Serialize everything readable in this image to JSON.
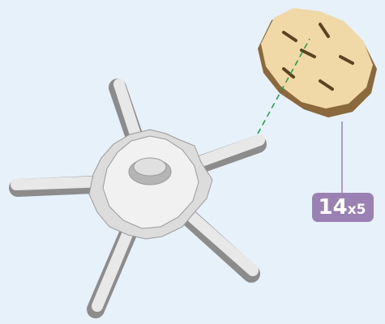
{
  "callout": {
    "count": "14",
    "multiplier": "x5"
  }
}
